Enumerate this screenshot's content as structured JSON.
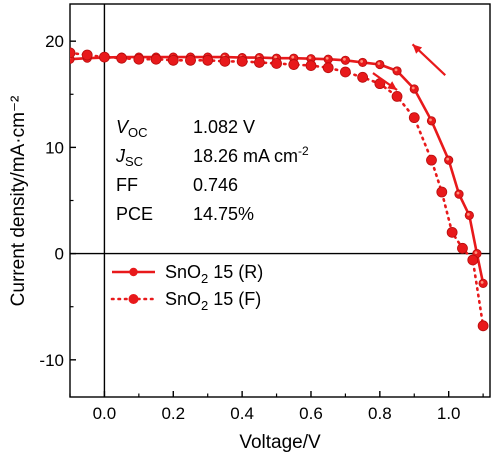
{
  "chart_data": {
    "type": "line",
    "xlabel": "Voltage/V",
    "ylabel": "Current density/mA·cm⁻²",
    "xlim": [
      -0.1,
      1.12
    ],
    "ylim": [
      -13.5,
      23.5
    ],
    "x_ticks": [
      0.0,
      0.2,
      0.4,
      0.6,
      0.8,
      1.0
    ],
    "x_tick_labels": [
      "0.0",
      "0.2",
      "0.4",
      "0.6",
      "0.8",
      "1.0"
    ],
    "y_ticks": [
      -10,
      0,
      10,
      20
    ],
    "y_tick_labels": [
      "-10",
      "0",
      "10",
      "20"
    ],
    "legend_position": "left-middle",
    "reference_lines": {
      "x0": true,
      "y0": true
    },
    "series": [
      {
        "name": "SnO2 15 (R)",
        "name_main": "SnO",
        "name_sub": "2",
        "name_rest": " 15 (R)",
        "style": "solid",
        "marker": "circle-small",
        "color": "#e8191b",
        "x": [
          -0.1,
          -0.05,
          0.0,
          0.05,
          0.1,
          0.15,
          0.2,
          0.25,
          0.3,
          0.35,
          0.4,
          0.45,
          0.5,
          0.55,
          0.6,
          0.65,
          0.7,
          0.75,
          0.8,
          0.85,
          0.9,
          0.95,
          1.0,
          1.03,
          1.06,
          1.082,
          1.1
        ],
        "y": [
          18.3,
          18.4,
          18.45,
          18.5,
          18.5,
          18.5,
          18.5,
          18.5,
          18.5,
          18.5,
          18.45,
          18.45,
          18.4,
          18.4,
          18.35,
          18.3,
          18.2,
          18.0,
          17.8,
          17.2,
          15.5,
          12.5,
          8.8,
          5.6,
          3.6,
          0.0,
          -2.8
        ]
      },
      {
        "name": "SnO2 15 (F)",
        "name_main": "SnO",
        "name_sub": "2",
        "name_rest": " 15 (F)",
        "style": "dotted",
        "marker": "circle",
        "color": "#e8191b",
        "x": [
          -0.1,
          -0.05,
          0.0,
          0.05,
          0.1,
          0.15,
          0.2,
          0.25,
          0.3,
          0.35,
          0.4,
          0.45,
          0.5,
          0.55,
          0.6,
          0.65,
          0.7,
          0.75,
          0.8,
          0.85,
          0.9,
          0.95,
          0.98,
          1.01,
          1.04,
          1.07,
          1.1
        ],
        "y": [
          18.9,
          18.7,
          18.5,
          18.4,
          18.3,
          18.3,
          18.2,
          18.2,
          18.2,
          18.1,
          18.1,
          18.0,
          17.9,
          17.8,
          17.7,
          17.5,
          17.1,
          16.6,
          16.0,
          14.8,
          12.8,
          8.8,
          5.8,
          2.0,
          0.5,
          -0.6,
          -6.8
        ]
      }
    ],
    "annotations": [
      {
        "label_main": "V",
        "label_sub": "OC",
        "value": "1.082 V"
      },
      {
        "label_main": "J",
        "label_sub": "SC",
        "value": "18.26 mA cm",
        "value_sup": "-2"
      },
      {
        "label_main": "FF",
        "label_sub": "",
        "value": "0.746"
      },
      {
        "label_main": "PCE",
        "label_sub": "",
        "value": "14.75%"
      }
    ],
    "arrows": [
      {
        "series": "SnO2 15 (R)",
        "direction": "up-left",
        "at_x": 0.9
      },
      {
        "series": "SnO2 15 (F)",
        "direction": "down-right",
        "at_x": 0.82
      }
    ]
  }
}
